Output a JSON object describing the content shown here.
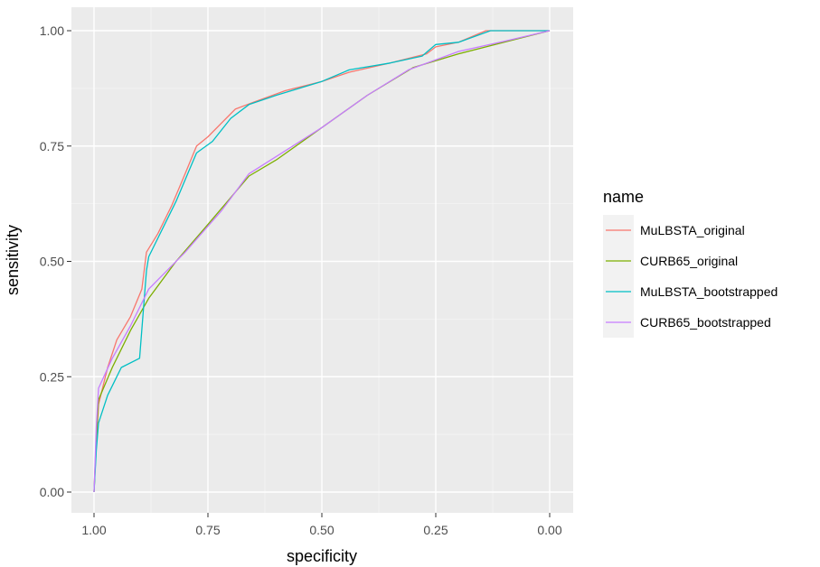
{
  "chart_data": {
    "type": "line",
    "xlabel": "specificity",
    "ylabel": "sensitivity",
    "xlim": [
      1.0,
      0.0
    ],
    "ylim": [
      0.0,
      1.0
    ],
    "x_reversed": true,
    "x_ticks": [
      {
        "value": 1.0,
        "label": "1.00"
      },
      {
        "value": 0.75,
        "label": "0.75"
      },
      {
        "value": 0.5,
        "label": "0.50"
      },
      {
        "value": 0.25,
        "label": "0.25"
      },
      {
        "value": 0.0,
        "label": "0.00"
      }
    ],
    "y_ticks": [
      {
        "value": 0.0,
        "label": "0.00"
      },
      {
        "value": 0.25,
        "label": "0.25"
      },
      {
        "value": 0.5,
        "label": "0.50"
      },
      {
        "value": 0.75,
        "label": "0.75"
      },
      {
        "value": 1.0,
        "label": "1.00"
      }
    ],
    "grid": true,
    "panel_background": "#ebebeb",
    "legend": {
      "title": "name",
      "position": "right"
    },
    "series": [
      {
        "name": "MuLBSTA_original",
        "color": "#f8766d",
        "points": [
          [
            1.0,
            0.0
          ],
          [
            0.995,
            0.1
          ],
          [
            0.99,
            0.19
          ],
          [
            0.97,
            0.27
          ],
          [
            0.95,
            0.33
          ],
          [
            0.92,
            0.38
          ],
          [
            0.895,
            0.44
          ],
          [
            0.885,
            0.52
          ],
          [
            0.86,
            0.56
          ],
          [
            0.83,
            0.62
          ],
          [
            0.8,
            0.69
          ],
          [
            0.775,
            0.75
          ],
          [
            0.75,
            0.77
          ],
          [
            0.72,
            0.8
          ],
          [
            0.69,
            0.83
          ],
          [
            0.65,
            0.845
          ],
          [
            0.58,
            0.87
          ],
          [
            0.5,
            0.89
          ],
          [
            0.44,
            0.91
          ],
          [
            0.35,
            0.93
          ],
          [
            0.27,
            0.95
          ],
          [
            0.25,
            0.965
          ],
          [
            0.2,
            0.975
          ],
          [
            0.14,
            1.0
          ],
          [
            0.0,
            1.0
          ]
        ]
      },
      {
        "name": "CURB65_original",
        "color": "#7cae00",
        "points": [
          [
            1.0,
            0.0
          ],
          [
            0.995,
            0.12
          ],
          [
            0.99,
            0.2
          ],
          [
            0.96,
            0.27
          ],
          [
            0.92,
            0.35
          ],
          [
            0.88,
            0.42
          ],
          [
            0.82,
            0.5
          ],
          [
            0.75,
            0.58
          ],
          [
            0.66,
            0.685
          ],
          [
            0.6,
            0.72
          ],
          [
            0.5,
            0.79
          ],
          [
            0.4,
            0.86
          ],
          [
            0.3,
            0.92
          ],
          [
            0.2,
            0.95
          ],
          [
            0.1,
            0.975
          ],
          [
            0.0,
            1.0
          ]
        ]
      },
      {
        "name": "MuLBSTA_bootstrapped",
        "color": "#00bfc4",
        "points": [
          [
            1.0,
            0.0
          ],
          [
            0.995,
            0.09
          ],
          [
            0.99,
            0.15
          ],
          [
            0.97,
            0.21
          ],
          [
            0.94,
            0.27
          ],
          [
            0.9,
            0.29
          ],
          [
            0.885,
            0.48
          ],
          [
            0.88,
            0.51
          ],
          [
            0.85,
            0.57
          ],
          [
            0.82,
            0.63
          ],
          [
            0.79,
            0.7
          ],
          [
            0.775,
            0.735
          ],
          [
            0.74,
            0.76
          ],
          [
            0.7,
            0.81
          ],
          [
            0.66,
            0.84
          ],
          [
            0.6,
            0.86
          ],
          [
            0.5,
            0.89
          ],
          [
            0.44,
            0.915
          ],
          [
            0.35,
            0.93
          ],
          [
            0.28,
            0.945
          ],
          [
            0.25,
            0.97
          ],
          [
            0.2,
            0.975
          ],
          [
            0.13,
            1.0
          ],
          [
            0.0,
            1.0
          ]
        ]
      },
      {
        "name": "CURB65_bootstrapped",
        "color": "#c77cff",
        "points": [
          [
            1.0,
            0.0
          ],
          [
            0.995,
            0.14
          ],
          [
            0.99,
            0.225
          ],
          [
            0.96,
            0.29
          ],
          [
            0.92,
            0.36
          ],
          [
            0.88,
            0.44
          ],
          [
            0.8,
            0.52
          ],
          [
            0.72,
            0.61
          ],
          [
            0.66,
            0.69
          ],
          [
            0.58,
            0.74
          ],
          [
            0.5,
            0.79
          ],
          [
            0.4,
            0.86
          ],
          [
            0.31,
            0.915
          ],
          [
            0.2,
            0.955
          ],
          [
            0.1,
            0.977
          ],
          [
            0.0,
            1.0
          ]
        ]
      }
    ]
  }
}
